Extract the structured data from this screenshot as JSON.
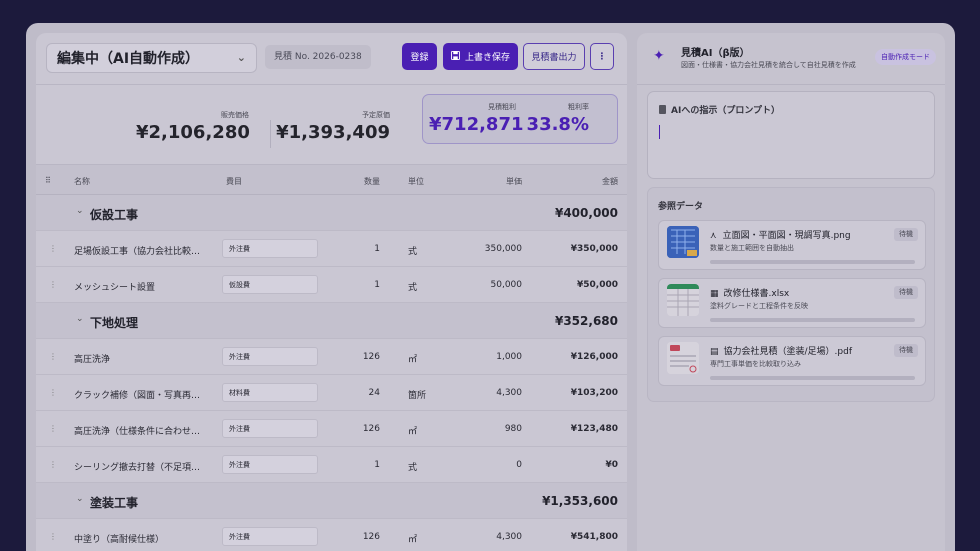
{
  "header": {
    "title": "編集中（AI自動作成）",
    "estimate_no": "見積 No. 2026-0238",
    "register_label": "登録",
    "overwrite_label": "上書き保存",
    "export_label": "見積書出力",
    "more_label": "⋮"
  },
  "summary": {
    "sales_label": "販売価格",
    "sales_value": "¥2,106,280",
    "cost_label": "予定原価",
    "cost_value": "¥1,393,409",
    "profit_label": "見積粗利",
    "profit_value": "¥712,871",
    "rate_label": "粗利率",
    "rate_value": "33.8%"
  },
  "table": {
    "headers": {
      "name": "名称",
      "category": "費目",
      "qty": "数量",
      "unit": "単位",
      "price": "単価",
      "amount": "金額"
    },
    "rows": [
      {
        "group": "仮設工事",
        "amount": "¥400,000"
      },
      {
        "name": "足場仮設工事（協力会社比較反映）",
        "category": "外注費",
        "qty": "1",
        "unit": "式",
        "price": "350,000",
        "amount": "¥350,000"
      },
      {
        "name": "メッシュシート設置",
        "category": "仮設費",
        "qty": "1",
        "unit": "式",
        "price": "50,000",
        "amount": "¥50,000"
      },
      {
        "group": "下地処理",
        "amount": "¥352,680"
      },
      {
        "name": "高圧洗浄",
        "category": "外注費",
        "qty": "126",
        "unit": "㎡",
        "price": "1,000",
        "amount": "¥126,000"
      },
      {
        "name": "クラック補修（図面・写真再計算）",
        "category": "材料費",
        "qty": "24",
        "unit": "箇所",
        "price": "4,300",
        "amount": "¥103,200"
      },
      {
        "name": "高圧洗浄（仕様条件に合わせて再…",
        "category": "外注費",
        "qty": "126",
        "unit": "㎡",
        "price": "980",
        "amount": "¥123,480"
      },
      {
        "name": "シーリング撤去打替（不足項目追…",
        "category": "外注費",
        "qty": "1",
        "unit": "式",
        "price": "0",
        "amount": "¥0"
      },
      {
        "group": "塗装工事",
        "amount": "¥1,353,600"
      },
      {
        "name": "中塗り（高耐候仕様）",
        "category": "外注費",
        "qty": "126",
        "unit": "㎡",
        "price": "4,300",
        "amount": "¥541,800"
      }
    ]
  },
  "ai_panel": {
    "title": "見積AI（β版）",
    "subtitle": "図面・仕様書・協力会社見積を統合して自社見積を作成",
    "mode_badge": "自動作成モード",
    "prompt_label": "AIへの指示（プロンプト）",
    "refs_label": "参照データ",
    "refs": [
      {
        "icon": "image-icon",
        "name": "立面図・平面図・現調写真.png",
        "desc": "数量と施工範囲を自動抽出",
        "status": "待機"
      },
      {
        "icon": "spreadsheet-icon",
        "name": "改修仕様書.xlsx",
        "desc": "塗料グレードと工程条件を反映",
        "status": "待機"
      },
      {
        "icon": "document-icon",
        "name": "協力会社見積（塗装/足場）.pdf",
        "desc": "専門工事単価を比較取り込み",
        "status": "待機"
      }
    ]
  },
  "colors": {
    "accent": "#4a1fb3",
    "background": "#1c1a3c"
  }
}
